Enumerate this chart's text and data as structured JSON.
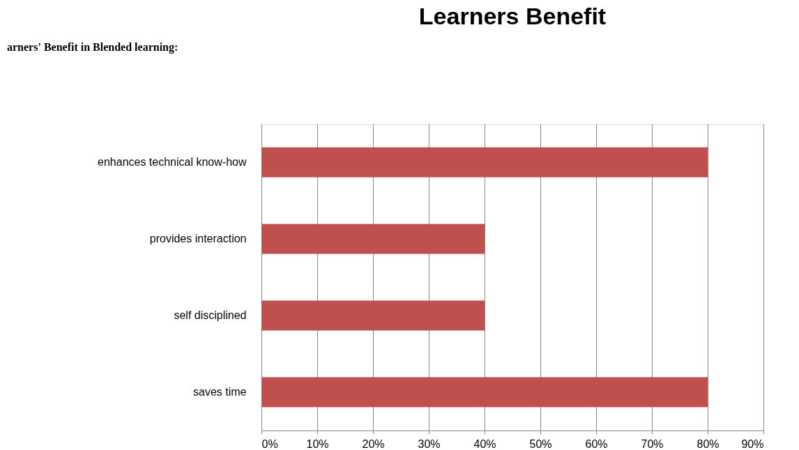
{
  "chart_data": {
    "type": "bar",
    "orientation": "horizontal",
    "title": "Learners Benefit",
    "annotations": [
      "arners' Benefit in Blended learning:"
    ],
    "categories": [
      "enhances technical know-how",
      "provides interaction",
      "self disciplined",
      "saves time"
    ],
    "values": [
      80,
      40,
      40,
      80
    ],
    "color": "#c0504d",
    "xlim": [
      0,
      90
    ],
    "xticks": [
      {
        "value": 0,
        "label": "0%"
      },
      {
        "value": 10,
        "label": "10%"
      },
      {
        "value": 20,
        "label": "20%"
      },
      {
        "value": 30,
        "label": "30%"
      },
      {
        "value": 40,
        "label": "40%"
      },
      {
        "value": 50,
        "label": "50%"
      },
      {
        "value": 60,
        "label": "60%"
      },
      {
        "value": 70,
        "label": "70%"
      },
      {
        "value": 80,
        "label": "80%"
      },
      {
        "value": 90,
        "label": "90%"
      }
    ],
    "grid": "x"
  }
}
